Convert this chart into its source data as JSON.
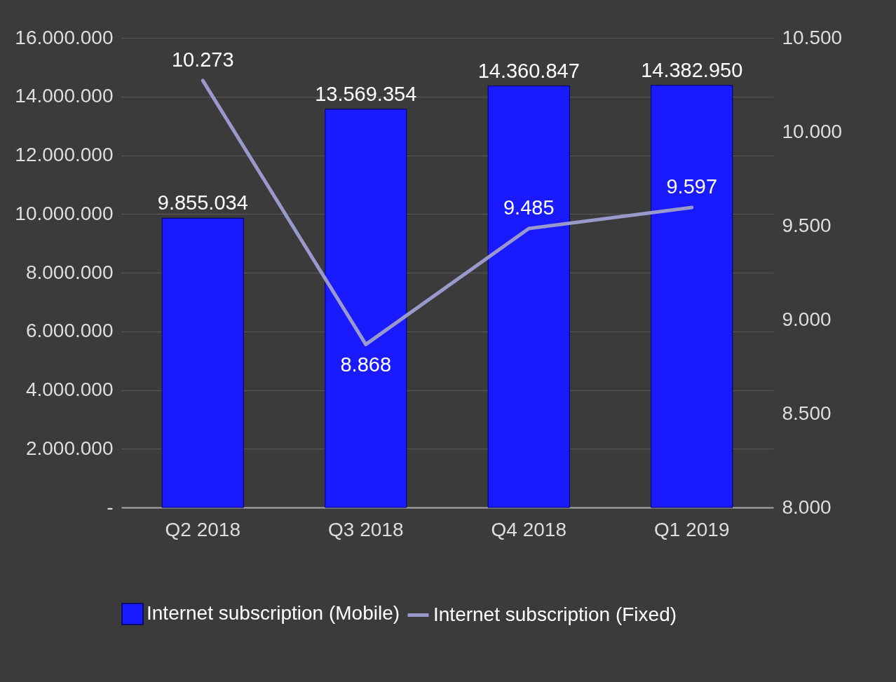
{
  "chart_data": {
    "type": "bar",
    "categories": [
      "Q2 2018",
      "Q3 2018",
      "Q4 2018",
      "Q1 2019"
    ],
    "series": [
      {
        "name": "Internet subscription (Mobile)",
        "color": "#1a1aff",
        "values": [
          9855034,
          13569354,
          14360847,
          14382950
        ],
        "value_labels": [
          "9.855.034",
          "13.569.354",
          "14.360.847",
          "14.382.950"
        ]
      },
      {
        "name": "Internet subscription (Fixed)",
        "type": "line",
        "axis": "y2",
        "color": "#9999cc",
        "values": [
          10273,
          8868,
          9485,
          9597
        ],
        "value_labels": [
          "10.273",
          "8.868",
          "9.485",
          "9.597"
        ]
      }
    ],
    "ylim": [
      0,
      16000000
    ],
    "yticks": [
      {
        "value": 0,
        "label": "-"
      },
      {
        "value": 2000000,
        "label": "2.000.000"
      },
      {
        "value": 4000000,
        "label": "4.000.000"
      },
      {
        "value": 6000000,
        "label": "6.000.000"
      },
      {
        "value": 8000000,
        "label": "8.000.000"
      },
      {
        "value": 10000000,
        "label": "10.000.000"
      },
      {
        "value": 12000000,
        "label": "12.000.000"
      },
      {
        "value": 14000000,
        "label": "14.000.000"
      },
      {
        "value": 16000000,
        "label": "16.000.000"
      }
    ],
    "y2lim": [
      8000,
      10500
    ],
    "y2ticks": [
      {
        "value": 8000,
        "label": "8.000"
      },
      {
        "value": 8500,
        "label": "8.500"
      },
      {
        "value": 9000,
        "label": "9.000"
      },
      {
        "value": 9500,
        "label": "9.500"
      },
      {
        "value": 10000,
        "label": "10.000"
      },
      {
        "value": 10500,
        "label": "10.500"
      }
    ],
    "grid": "y",
    "legend": "bottom",
    "marker": "none",
    "line_style": "solid"
  }
}
